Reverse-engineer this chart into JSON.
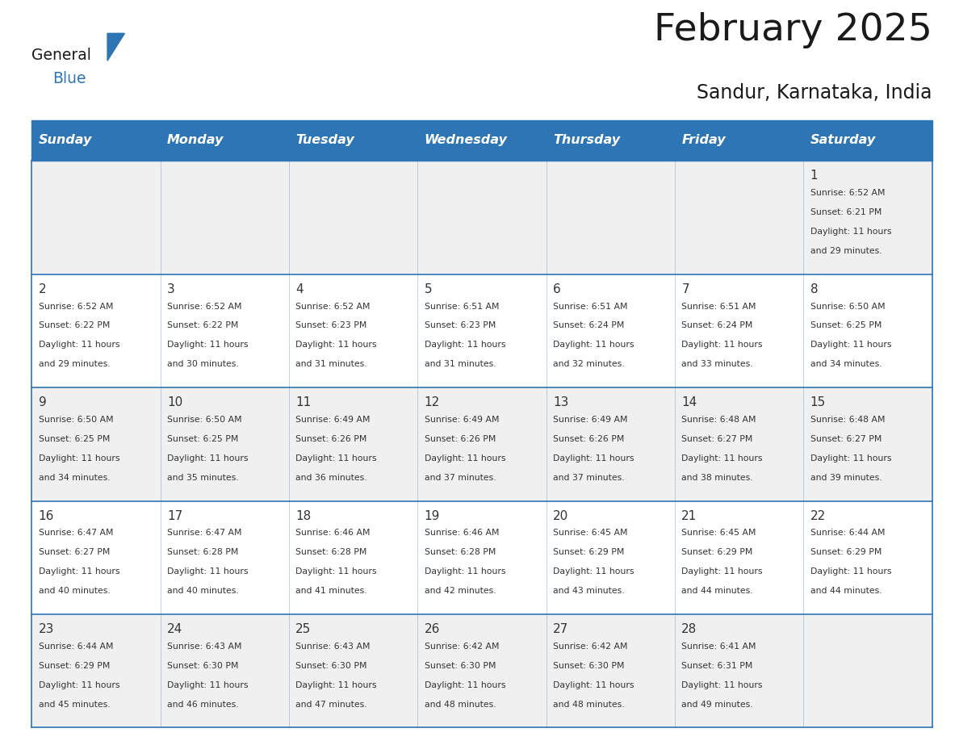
{
  "title": "February 2025",
  "subtitle": "Sandur, Karnataka, India",
  "header_bg_color": "#2E75B6",
  "header_text_color": "#FFFFFF",
  "days_of_week": [
    "Sunday",
    "Monday",
    "Tuesday",
    "Wednesday",
    "Thursday",
    "Friday",
    "Saturday"
  ],
  "bg_color": "#FFFFFF",
  "cell_alt_color": "#F0F0F0",
  "border_color": "#2E75B6",
  "day_number_color": "#333333",
  "info_text_color": "#333333",
  "logo_general_color": "#1a1a1a",
  "logo_blue_color": "#2E75B6",
  "calendar_data": [
    [
      null,
      null,
      null,
      null,
      null,
      null,
      {
        "day": 1,
        "sunrise": "6:52 AM",
        "sunset": "6:21 PM",
        "daylight_hours": 11,
        "daylight_minutes": 29
      }
    ],
    [
      {
        "day": 2,
        "sunrise": "6:52 AM",
        "sunset": "6:22 PM",
        "daylight_hours": 11,
        "daylight_minutes": 29
      },
      {
        "day": 3,
        "sunrise": "6:52 AM",
        "sunset": "6:22 PM",
        "daylight_hours": 11,
        "daylight_minutes": 30
      },
      {
        "day": 4,
        "sunrise": "6:52 AM",
        "sunset": "6:23 PM",
        "daylight_hours": 11,
        "daylight_minutes": 31
      },
      {
        "day": 5,
        "sunrise": "6:51 AM",
        "sunset": "6:23 PM",
        "daylight_hours": 11,
        "daylight_minutes": 31
      },
      {
        "day": 6,
        "sunrise": "6:51 AM",
        "sunset": "6:24 PM",
        "daylight_hours": 11,
        "daylight_minutes": 32
      },
      {
        "day": 7,
        "sunrise": "6:51 AM",
        "sunset": "6:24 PM",
        "daylight_hours": 11,
        "daylight_minutes": 33
      },
      {
        "day": 8,
        "sunrise": "6:50 AM",
        "sunset": "6:25 PM",
        "daylight_hours": 11,
        "daylight_minutes": 34
      }
    ],
    [
      {
        "day": 9,
        "sunrise": "6:50 AM",
        "sunset": "6:25 PM",
        "daylight_hours": 11,
        "daylight_minutes": 34
      },
      {
        "day": 10,
        "sunrise": "6:50 AM",
        "sunset": "6:25 PM",
        "daylight_hours": 11,
        "daylight_minutes": 35
      },
      {
        "day": 11,
        "sunrise": "6:49 AM",
        "sunset": "6:26 PM",
        "daylight_hours": 11,
        "daylight_minutes": 36
      },
      {
        "day": 12,
        "sunrise": "6:49 AM",
        "sunset": "6:26 PM",
        "daylight_hours": 11,
        "daylight_minutes": 37
      },
      {
        "day": 13,
        "sunrise": "6:49 AM",
        "sunset": "6:26 PM",
        "daylight_hours": 11,
        "daylight_minutes": 37
      },
      {
        "day": 14,
        "sunrise": "6:48 AM",
        "sunset": "6:27 PM",
        "daylight_hours": 11,
        "daylight_minutes": 38
      },
      {
        "day": 15,
        "sunrise": "6:48 AM",
        "sunset": "6:27 PM",
        "daylight_hours": 11,
        "daylight_minutes": 39
      }
    ],
    [
      {
        "day": 16,
        "sunrise": "6:47 AM",
        "sunset": "6:27 PM",
        "daylight_hours": 11,
        "daylight_minutes": 40
      },
      {
        "day": 17,
        "sunrise": "6:47 AM",
        "sunset": "6:28 PM",
        "daylight_hours": 11,
        "daylight_minutes": 40
      },
      {
        "day": 18,
        "sunrise": "6:46 AM",
        "sunset": "6:28 PM",
        "daylight_hours": 11,
        "daylight_minutes": 41
      },
      {
        "day": 19,
        "sunrise": "6:46 AM",
        "sunset": "6:28 PM",
        "daylight_hours": 11,
        "daylight_minutes": 42
      },
      {
        "day": 20,
        "sunrise": "6:45 AM",
        "sunset": "6:29 PM",
        "daylight_hours": 11,
        "daylight_minutes": 43
      },
      {
        "day": 21,
        "sunrise": "6:45 AM",
        "sunset": "6:29 PM",
        "daylight_hours": 11,
        "daylight_minutes": 44
      },
      {
        "day": 22,
        "sunrise": "6:44 AM",
        "sunset": "6:29 PM",
        "daylight_hours": 11,
        "daylight_minutes": 44
      }
    ],
    [
      {
        "day": 23,
        "sunrise": "6:44 AM",
        "sunset": "6:29 PM",
        "daylight_hours": 11,
        "daylight_minutes": 45
      },
      {
        "day": 24,
        "sunrise": "6:43 AM",
        "sunset": "6:30 PM",
        "daylight_hours": 11,
        "daylight_minutes": 46
      },
      {
        "day": 25,
        "sunrise": "6:43 AM",
        "sunset": "6:30 PM",
        "daylight_hours": 11,
        "daylight_minutes": 47
      },
      {
        "day": 26,
        "sunrise": "6:42 AM",
        "sunset": "6:30 PM",
        "daylight_hours": 11,
        "daylight_minutes": 48
      },
      {
        "day": 27,
        "sunrise": "6:42 AM",
        "sunset": "6:30 PM",
        "daylight_hours": 11,
        "daylight_minutes": 48
      },
      {
        "day": 28,
        "sunrise": "6:41 AM",
        "sunset": "6:31 PM",
        "daylight_hours": 11,
        "daylight_minutes": 49
      },
      null
    ]
  ]
}
